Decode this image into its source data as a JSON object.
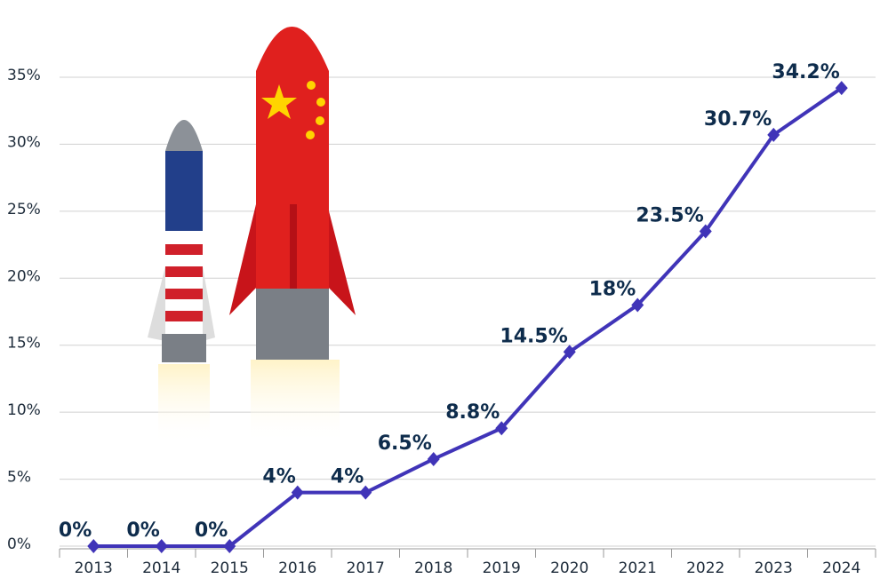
{
  "chart_data": {
    "type": "line",
    "categories": [
      "2013",
      "2014",
      "2015",
      "2016",
      "2017",
      "2018",
      "2019",
      "2020",
      "2021",
      "2022",
      "2023",
      "2024"
    ],
    "values": [
      0,
      0,
      0,
      4,
      4,
      6.5,
      8.8,
      14.5,
      18,
      23.5,
      30.7,
      34.2
    ],
    "value_labels": [
      "0%",
      "0%",
      "0%",
      "4%",
      "4%",
      "6.5%",
      "8.8%",
      "14.5%",
      "18%",
      "23.5%",
      "30.7%",
      "34.2%"
    ],
    "color": "#4034b8",
    "ylim": [
      0,
      35
    ],
    "yticks": [
      {
        "value": 0,
        "label": "0%"
      },
      {
        "value": 5,
        "label": "5%"
      },
      {
        "value": 10,
        "label": "10%"
      },
      {
        "value": 15,
        "label": "15%"
      },
      {
        "value": 20,
        "label": "20%"
      },
      {
        "value": 25,
        "label": "25%"
      },
      {
        "value": 30,
        "label": "30%"
      },
      {
        "value": 35,
        "label": "35%"
      }
    ],
    "grid": true
  }
}
